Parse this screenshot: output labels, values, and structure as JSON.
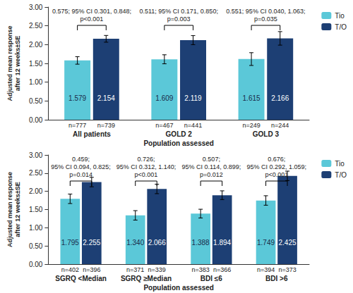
{
  "chart_data": [
    {
      "type": "bar",
      "y_label": "Adjusted mean response\nafter 12 weeks±SE",
      "x_label": "Population assessed",
      "categories": [
        "All patients",
        "GOLD 2",
        "GOLD 3"
      ],
      "series": [
        {
          "name": "Tio",
          "color": "#5bc8d8",
          "values": [
            1.579,
            1.609,
            1.615
          ],
          "value_labels": [
            "1.579",
            "1.609",
            "1.615"
          ],
          "errors": [
            0.1,
            0.12,
            0.17
          ],
          "n_labels": [
            "n=777",
            "n=467",
            "n=249"
          ]
        },
        {
          "name": "T/O",
          "color": "#1d3f74",
          "values": [
            2.154,
            2.119,
            2.166
          ],
          "value_labels": [
            "2.154",
            "2.119",
            "2.166"
          ],
          "errors": [
            0.09,
            0.12,
            0.18
          ],
          "n_labels": [
            "n=739",
            "n=441",
            "n=244"
          ]
        }
      ],
      "annotations": [
        "0.575; 95% CI 0.301, 0.848;\np<0.001",
        "0.511; 95% CI 0.171, 0.850;\np=0.003",
        "0.551; 95% CI 0.040, 1.063;\np=0.035"
      ],
      "ylim": [
        0,
        3
      ],
      "yticks": [
        {
          "value": 0,
          "label": "0.00"
        },
        {
          "value": 0.5,
          "label": "0.50"
        },
        {
          "value": 1,
          "label": "1.00"
        },
        {
          "value": 1.5,
          "label": "1.50"
        },
        {
          "value": 2,
          "label": "2.00"
        },
        {
          "value": 2.5,
          "label": "2.50"
        },
        {
          "value": 3,
          "label": "3.00"
        }
      ],
      "grid": false,
      "legend": "right",
      "data_labels": true
    },
    {
      "type": "bar",
      "y_label": "Adjusted mean response\nafter 12 weeks±SE",
      "x_label": "Population assessed",
      "categories": [
        "SGRQ <Median",
        "SGRQ ≥Median",
        "BDI ≤6",
        "BDI >6"
      ],
      "series": [
        {
          "name": "Tio",
          "color": "#5bc8d8",
          "values": [
            1.795,
            1.34,
            1.388,
            1.749
          ],
          "value_labels": [
            "1.795",
            "1.340",
            "1.388",
            "1.749"
          ],
          "errors": [
            0.13,
            0.13,
            0.12,
            0.13
          ],
          "n_labels": [
            "n=402",
            "n=371",
            "n=383",
            "n=394"
          ]
        },
        {
          "name": "T/O",
          "color": "#1d3f74",
          "values": [
            2.255,
            2.066,
            1.894,
            2.425
          ],
          "value_labels": [
            "2.255",
            "2.066",
            "1.894",
            "2.425"
          ],
          "errors": [
            0.13,
            0.13,
            0.12,
            0.13
          ],
          "n_labels": [
            "n=396",
            "n=339",
            "n=366",
            "n=373"
          ]
        }
      ],
      "annotations": [
        "0.459;\n95% CI 0.094, 0.825;\np=0.014",
        "0.726;\n95% CI 0.312, 1.140;\np<0.001",
        "0.507;\n95% CI 0.114, 0.899;\np=0.012",
        "0.676;\n95% CI 0.292, 1.059;\np<0.001"
      ],
      "ylim": [
        0,
        3
      ],
      "yticks": [
        {
          "value": 0,
          "label": "0.00"
        },
        {
          "value": 0.5,
          "label": "0.50"
        },
        {
          "value": 1,
          "label": "1.00"
        },
        {
          "value": 1.5,
          "label": "1.50"
        },
        {
          "value": 2,
          "label": "2.00"
        },
        {
          "value": 2.5,
          "label": "2.50"
        },
        {
          "value": 3,
          "label": "3.00"
        }
      ],
      "grid": false,
      "legend": "right",
      "data_labels": true
    }
  ]
}
